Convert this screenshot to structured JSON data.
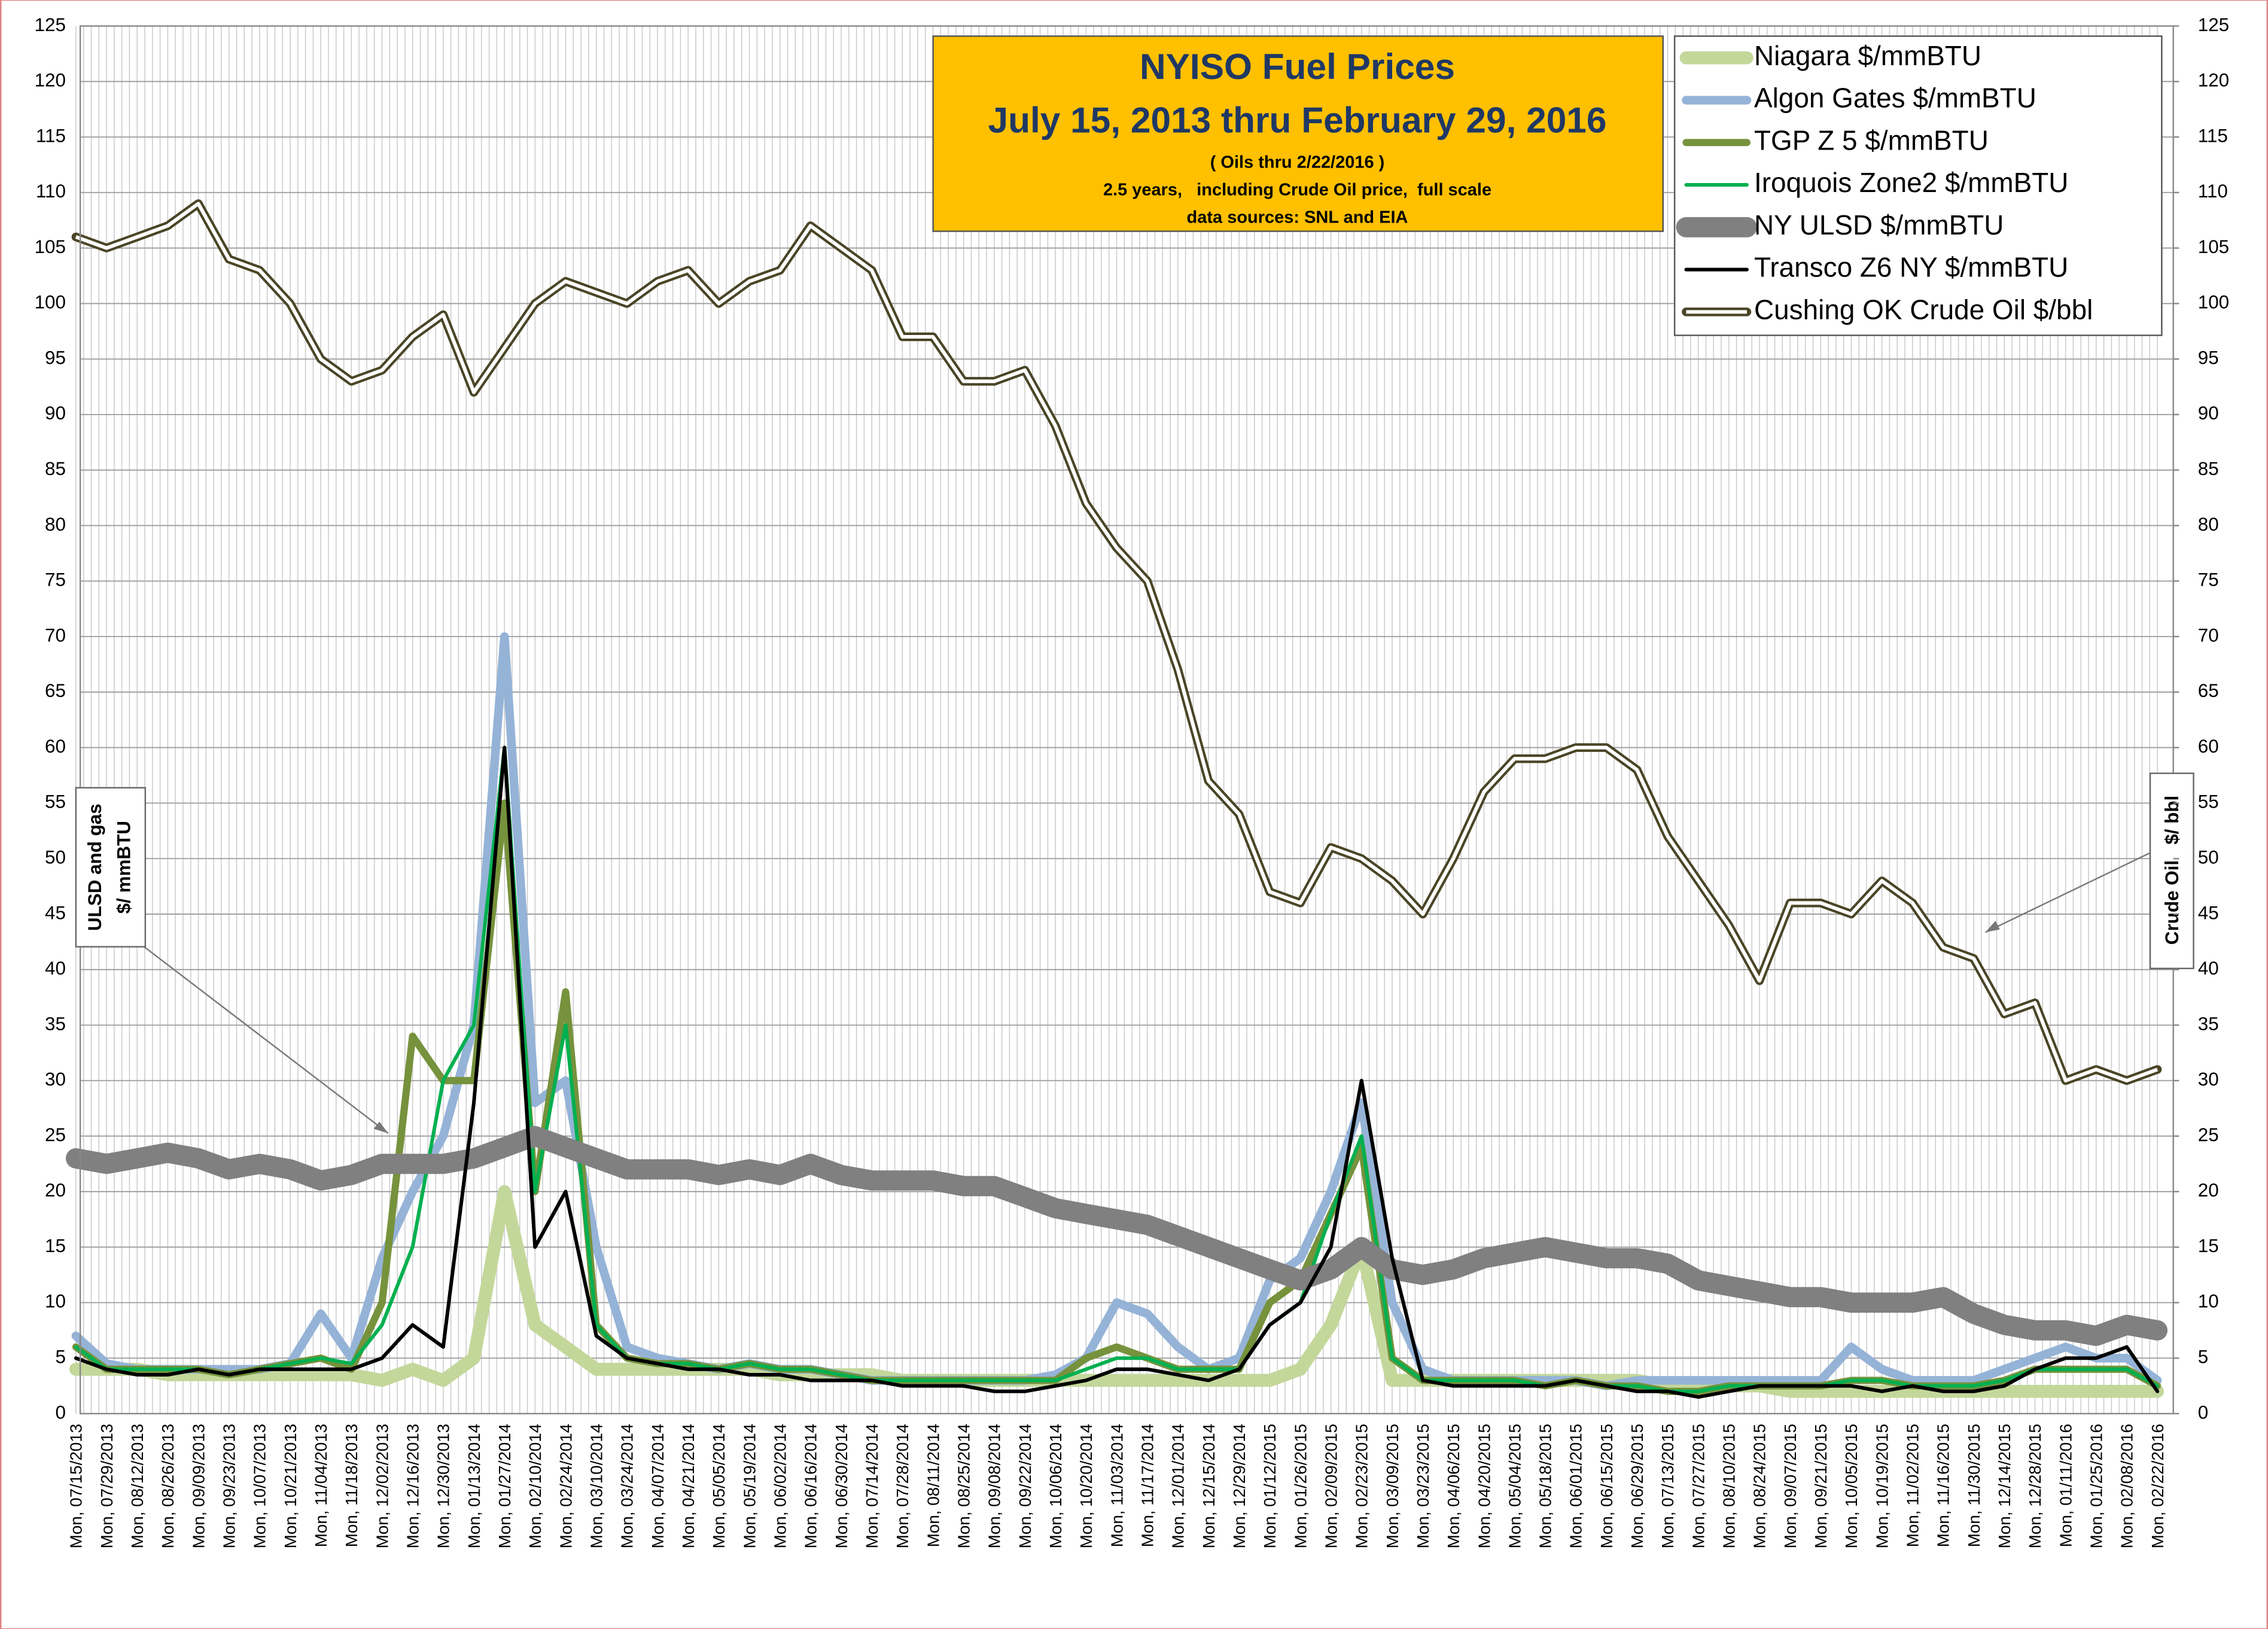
{
  "chart_data": {
    "type": "line",
    "title": "NYISO Fuel Prices",
    "subtitle": "July 15, 2013 thru February 29, 2016",
    "notes": [
      "( Oils thru 2/22/2016 )",
      "2.5 years,   including Crude Oil price,  full scale",
      "data sources: SNL and EIA"
    ],
    "annotations": [
      [
        "ULSD and gas",
        "$/ mmBTU"
      ],
      [
        "Crude Oil   $/ bbl"
      ]
    ],
    "categories": [
      "Mon, 07/15/2013",
      "Mon, 07/29/2013",
      "Mon, 08/12/2013",
      "Mon, 08/26/2013",
      "Mon, 09/09/2013",
      "Mon, 09/23/2013",
      "Mon, 10/07/2013",
      "Mon, 10/21/2013",
      "Mon, 11/04/2013",
      "Mon, 11/18/2013",
      "Mon, 12/02/2013",
      "Mon, 12/16/2013",
      "Mon, 12/30/2013",
      "Mon, 01/13/2014",
      "Mon, 01/27/2014",
      "Mon, 02/10/2014",
      "Mon, 02/24/2014",
      "Mon, 03/10/2014",
      "Mon, 03/24/2014",
      "Mon, 04/07/2014",
      "Mon, 04/21/2014",
      "Mon, 05/05/2014",
      "Mon, 05/19/2014",
      "Mon, 06/02/2014",
      "Mon, 06/16/2014",
      "Mon, 06/30/2014",
      "Mon, 07/14/2014",
      "Mon, 07/28/2014",
      "Mon, 08/11/2014",
      "Mon, 08/25/2014",
      "Mon, 09/08/2014",
      "Mon, 09/22/2014",
      "Mon, 10/06/2014",
      "Mon, 10/20/2014",
      "Mon, 11/03/2014",
      "Mon, 11/17/2014",
      "Mon, 12/01/2014",
      "Mon, 12/15/2014",
      "Mon, 12/29/2014",
      "Mon, 01/12/2015",
      "Mon, 01/26/2015",
      "Mon, 02/09/2015",
      "Mon, 02/23/2015",
      "Mon, 03/09/2015",
      "Mon, 03/23/2015",
      "Mon, 04/06/2015",
      "Mon, 04/20/2015",
      "Mon, 05/04/2015",
      "Mon, 05/18/2015",
      "Mon, 06/01/2015",
      "Mon, 06/15/2015",
      "Mon, 06/29/2015",
      "Mon, 07/13/2015",
      "Mon, 07/27/2015",
      "Mon, 08/10/2015",
      "Mon, 08/24/2015",
      "Mon, 09/07/2015",
      "Mon, 09/21/2015",
      "Mon, 10/05/2015",
      "Mon, 10/19/2015",
      "Mon, 11/02/2015",
      "Mon, 11/16/2015",
      "Mon, 11/30/2015",
      "Mon, 12/14/2015",
      "Mon, 12/28/2015",
      "Mon, 01/11/2016",
      "Mon, 01/25/2016",
      "Mon, 02/08/2016",
      "Mon, 02/22/2016"
    ],
    "series": [
      {
        "name": "Niagara  $/mmBTU",
        "color": "#c4d79b",
        "values": [
          4,
          4,
          4,
          3.5,
          3.5,
          3.5,
          3.5,
          3.5,
          3.5,
          3.5,
          3,
          4,
          3,
          5,
          20,
          8,
          6,
          4,
          4,
          4,
          4,
          4,
          4,
          3.5,
          3.5,
          3.5,
          3.5,
          3,
          3,
          3,
          3,
          3,
          3,
          3,
          3,
          3,
          3,
          3,
          3,
          3,
          4,
          8,
          15,
          3,
          3,
          3,
          3,
          3,
          3,
          3,
          3,
          3,
          2.5,
          2.5,
          2.5,
          2.5,
          2,
          2,
          2,
          2,
          2,
          2,
          2,
          2,
          2,
          2,
          2,
          2,
          2
        ]
      },
      {
        "name": "Algon Gates  $/mmBTU",
        "color": "#95b3d7",
        "values": [
          7,
          4.5,
          4,
          4,
          4,
          4,
          4,
          4.5,
          9,
          5,
          14,
          20,
          25,
          35,
          70,
          28,
          30,
          15,
          6,
          5,
          4.5,
          4,
          4.5,
          4,
          4,
          3.5,
          3,
          3,
          3,
          3,
          3,
          3,
          3.5,
          5,
          10,
          9,
          6,
          4,
          5,
          12,
          14,
          20,
          28,
          10,
          4,
          3,
          3,
          3,
          3,
          3,
          2.5,
          3,
          3,
          3,
          3,
          3,
          3,
          3,
          6,
          4,
          3,
          3,
          3,
          4,
          5,
          6,
          5,
          5,
          3
        ]
      },
      {
        "name": "TGP Z 5  $/mmBTU",
        "color": "#76923c",
        "values": [
          6,
          4,
          4,
          4,
          4,
          3.5,
          4,
          4.5,
          5,
          4,
          10,
          34,
          30,
          30,
          55,
          20,
          38,
          8,
          5,
          4.5,
          4.5,
          4,
          4.5,
          4,
          4,
          3.5,
          3,
          3,
          3,
          3,
          3,
          3,
          3,
          5,
          6,
          5,
          4,
          4,
          4,
          10,
          12,
          18,
          24,
          5,
          3,
          3,
          3,
          3,
          2.5,
          3,
          2.5,
          2.5,
          2,
          2,
          2.5,
          2.5,
          2.5,
          2.5,
          3,
          3,
          2.5,
          2.5,
          2.5,
          3,
          4,
          4,
          4,
          4,
          2.5
        ]
      },
      {
        "name": "Iroquois Zone2  $/mmBTU",
        "color": "#00b050",
        "values": [
          6,
          4,
          4,
          4,
          4,
          3.5,
          4,
          4.5,
          5,
          4.5,
          8,
          15,
          30,
          35,
          60,
          20,
          35,
          8,
          5,
          4.5,
          4.5,
          4,
          4.5,
          4,
          4,
          3.5,
          3,
          3,
          3,
          3,
          3,
          3,
          3,
          4,
          5,
          5,
          4,
          4,
          4,
          8,
          10,
          18,
          25,
          5,
          3,
          3,
          3,
          3,
          2.5,
          3,
          2.5,
          2.5,
          2,
          2,
          2.5,
          2.5,
          2.5,
          2.5,
          3,
          3,
          2.5,
          2.5,
          2.5,
          3,
          4,
          4,
          4,
          4,
          2.5
        ]
      },
      {
        "name": "NY ULSD    $/mmBTU",
        "color": "#808080",
        "values": [
          23,
          22.5,
          23,
          23.5,
          23,
          22,
          22.5,
          22,
          21,
          21.5,
          22.5,
          22.5,
          22.5,
          23,
          24,
          25,
          24,
          23,
          22,
          22,
          22,
          21.5,
          22,
          21.5,
          22.5,
          21.5,
          21,
          21,
          21,
          20.5,
          20.5,
          19.5,
          18.5,
          18,
          17.5,
          17,
          16,
          15,
          14,
          13,
          12,
          13,
          15,
          13,
          12.5,
          13,
          14,
          14.5,
          15,
          14.5,
          14,
          14,
          13.5,
          12,
          11.5,
          11,
          10.5,
          10.5,
          10,
          10,
          10,
          10.5,
          9,
          8,
          7.5,
          7.5,
          7,
          8,
          7.5
        ]
      },
      {
        "name": "Transco Z6 NY   $/mmBTU",
        "color": "#000000",
        "values": [
          5,
          4,
          3.5,
          3.5,
          4,
          3.5,
          4,
          4,
          4,
          4,
          5,
          8,
          6,
          28,
          60,
          15,
          20,
          7,
          5,
          4.5,
          4,
          4,
          3.5,
          3.5,
          3,
          3,
          3,
          2.5,
          2.5,
          2.5,
          2,
          2,
          2.5,
          3,
          4,
          4,
          3.5,
          3,
          4,
          8,
          10,
          15,
          30,
          14,
          3,
          2.5,
          2.5,
          2.5,
          2.5,
          3,
          2.5,
          2,
          2,
          1.5,
          2,
          2.5,
          2.5,
          2.5,
          2.5,
          2,
          2.5,
          2,
          2,
          2.5,
          4,
          5,
          5,
          6,
          2
        ]
      },
      {
        "name": "Cushing OK Crude Oil $/bbl",
        "color": "#4a4526",
        "axis": "y2",
        "values": [
          106,
          105,
          106,
          107,
          109,
          104,
          103,
          100,
          95,
          93,
          94,
          97,
          99,
          92,
          96,
          100,
          102,
          101,
          100,
          102,
          103,
          100,
          102,
          103,
          107,
          105,
          103,
          97,
          97,
          93,
          93,
          94,
          89,
          82,
          78,
          75,
          67,
          57,
          54,
          47,
          46,
          51,
          50,
          48,
          45,
          50,
          56,
          59,
          59,
          60,
          60,
          58,
          52,
          48,
          44,
          39,
          46,
          46,
          45,
          48,
          46,
          42,
          41,
          36,
          37,
          30,
          31,
          30,
          31
        ]
      }
    ],
    "ylim": [
      0,
      125
    ],
    "yticks": [
      0,
      5,
      10,
      15,
      20,
      25,
      30,
      35,
      40,
      45,
      50,
      55,
      60,
      65,
      70,
      75,
      80,
      85,
      90,
      95,
      100,
      105,
      110,
      115,
      120,
      125
    ],
    "y2lim": [
      0,
      125
    ],
    "y2ticks": [
      0,
      5,
      10,
      15,
      20,
      25,
      30,
      35,
      40,
      45,
      50,
      55,
      60,
      65,
      70,
      75,
      80,
      85,
      90,
      95,
      100,
      105,
      110,
      115,
      120,
      125
    ],
    "grid": true,
    "legend": "top right"
  }
}
